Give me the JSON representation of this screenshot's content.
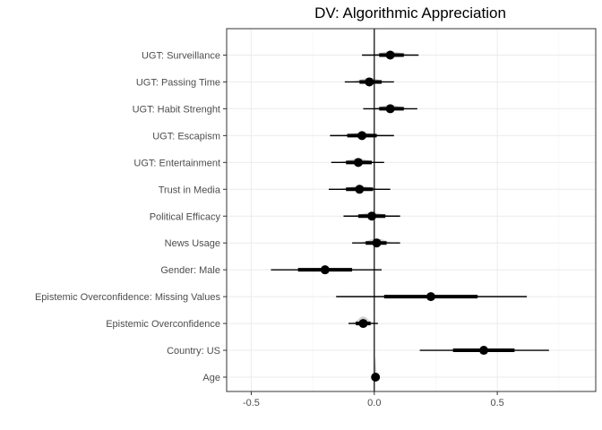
{
  "chart_data": {
    "type": "coefficient-plot",
    "title": "DV: Algorithmic Appreciation",
    "xlabel": "",
    "ylabel": "",
    "xlim": [
      -0.6,
      0.9
    ],
    "xticks": [
      -0.5,
      0.0,
      0.5
    ],
    "xtick_labels": [
      "-0.5",
      "0.0",
      "0.5"
    ],
    "reference_line": 0,
    "grid": true,
    "theme": "bw",
    "point_color": "#000000",
    "density_color": "#999999",
    "terms": [
      {
        "label": "UGT: Surveillance",
        "estimate": 0.065,
        "inner": [
          0.02,
          0.12
        ],
        "outer": [
          -0.05,
          0.18
        ]
      },
      {
        "label": "UGT: Passing Time",
        "estimate": -0.02,
        "inner": [
          -0.06,
          0.03
        ],
        "outer": [
          -0.12,
          0.08
        ]
      },
      {
        "label": "UGT: Habit Strenght",
        "estimate": 0.065,
        "inner": [
          0.02,
          0.12
        ],
        "outer": [
          -0.045,
          0.175
        ]
      },
      {
        "label": "UGT: Escapism",
        "estimate": -0.05,
        "inner": [
          -0.11,
          0.01
        ],
        "outer": [
          -0.18,
          0.08
        ]
      },
      {
        "label": "UGT: Entertainment",
        "estimate": -0.065,
        "inner": [
          -0.115,
          -0.01
        ],
        "outer": [
          -0.175,
          0.04
        ]
      },
      {
        "label": "Trust in Media",
        "estimate": -0.06,
        "inner": [
          -0.115,
          -0.005
        ],
        "outer": [
          -0.185,
          0.065
        ]
      },
      {
        "label": "Political Efficacy",
        "estimate": -0.01,
        "inner": [
          -0.065,
          0.045
        ],
        "outer": [
          -0.125,
          0.105
        ]
      },
      {
        "label": "News Usage",
        "estimate": 0.01,
        "inner": [
          -0.035,
          0.05
        ],
        "outer": [
          -0.09,
          0.105
        ]
      },
      {
        "label": "Gender: Male",
        "estimate": -0.2,
        "inner": [
          -0.31,
          -0.09
        ],
        "outer": [
          -0.42,
          0.03
        ]
      },
      {
        "label": "Epistemic Overconfidence: Missing Values",
        "estimate": 0.23,
        "inner": [
          0.04,
          0.42
        ],
        "outer": [
          -0.155,
          0.62
        ]
      },
      {
        "label": "Epistemic Overconfidence",
        "estimate": -0.045,
        "inner": [
          -0.075,
          -0.015
        ],
        "outer": [
          -0.105,
          0.015
        ]
      },
      {
        "label": "Country: US",
        "estimate": 0.445,
        "inner": [
          0.32,
          0.57
        ],
        "outer": [
          0.185,
          0.71
        ]
      },
      {
        "label": "Age",
        "estimate": 0.005,
        "inner": [
          0.0,
          0.01
        ],
        "outer": [
          -0.002,
          0.012
        ]
      }
    ]
  }
}
